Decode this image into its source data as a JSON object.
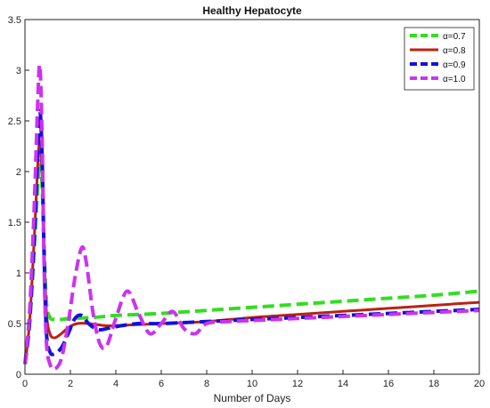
{
  "chart_data": {
    "type": "line",
    "title": "Healthy Hepatocyte",
    "xlabel": "Number of Days",
    "ylabel": "",
    "xlim": [
      0,
      20
    ],
    "ylim": [
      0,
      3.5
    ],
    "xticks": [
      0,
      2,
      4,
      6,
      8,
      10,
      12,
      14,
      16,
      18,
      20
    ],
    "yticks": [
      0,
      0.5,
      1,
      1.5,
      2,
      2.5,
      3,
      3.5
    ],
    "xtick_labels": [
      "0",
      "2",
      "4",
      "6",
      "8",
      "10",
      "12",
      "14",
      "16",
      "18",
      "20"
    ],
    "ytick_labels": [
      "0",
      "0.5",
      "1",
      "1.5",
      "2",
      "2.5",
      "3",
      "3.5"
    ],
    "grid": false,
    "legend_position": "top-right",
    "series": [
      {
        "name": "α=0.7",
        "color": "#33dd22",
        "style": "dashed",
        "x": [
          0,
          0.2,
          0.4,
          0.55,
          0.65,
          0.75,
          0.85,
          0.95,
          1.1,
          1.3,
          1.6,
          2,
          3,
          4,
          6,
          8,
          10,
          12,
          14,
          16,
          18,
          20
        ],
        "y": [
          0.1,
          0.5,
          1.2,
          1.8,
          2.1,
          1.9,
          1.2,
          0.7,
          0.56,
          0.54,
          0.54,
          0.55,
          0.56,
          0.58,
          0.6,
          0.63,
          0.66,
          0.69,
          0.72,
          0.75,
          0.78,
          0.82
        ]
      },
      {
        "name": "α=0.8",
        "color": "#bb2211",
        "style": "solid",
        "x": [
          0,
          0.2,
          0.4,
          0.55,
          0.65,
          0.75,
          0.85,
          0.95,
          1.1,
          1.3,
          1.6,
          1.9,
          2.3,
          2.8,
          3.5,
          4,
          6,
          8,
          10,
          12,
          14,
          16,
          18,
          20
        ],
        "y": [
          0.1,
          0.5,
          1.3,
          2.0,
          2.3,
          2.0,
          1.2,
          0.6,
          0.4,
          0.36,
          0.4,
          0.46,
          0.5,
          0.5,
          0.48,
          0.48,
          0.5,
          0.52,
          0.56,
          0.59,
          0.62,
          0.65,
          0.68,
          0.71
        ]
      },
      {
        "name": "α=0.9",
        "color": "#1111dd",
        "style": "dashed",
        "x": [
          0,
          0.2,
          0.4,
          0.55,
          0.65,
          0.75,
          0.85,
          0.95,
          1.1,
          1.3,
          1.6,
          1.9,
          2.2,
          2.5,
          2.8,
          3.2,
          3.6,
          4,
          5,
          6,
          8,
          10,
          12,
          14,
          16,
          18,
          20
        ],
        "y": [
          0.1,
          0.5,
          1.3,
          2.1,
          2.6,
          2.2,
          1.1,
          0.4,
          0.22,
          0.2,
          0.26,
          0.4,
          0.55,
          0.58,
          0.5,
          0.44,
          0.45,
          0.47,
          0.5,
          0.5,
          0.52,
          0.54,
          0.56,
          0.58,
          0.6,
          0.62,
          0.64
        ]
      },
      {
        "name": "α=1.0",
        "color": "#cc33ee",
        "style": "dashed",
        "x": [
          0,
          0.2,
          0.4,
          0.55,
          0.65,
          0.75,
          0.85,
          0.95,
          1.1,
          1.3,
          1.6,
          1.9,
          2.2,
          2.5,
          2.7,
          3.0,
          3.3,
          3.6,
          4.0,
          4.5,
          5.0,
          5.5,
          6.0,
          6.5,
          7.0,
          7.5,
          8.0,
          9,
          10,
          12,
          14,
          16,
          18,
          20
        ],
        "y": [
          0.1,
          0.6,
          1.6,
          2.6,
          3.05,
          2.4,
          1.0,
          0.3,
          0.1,
          0.05,
          0.15,
          0.5,
          0.95,
          1.25,
          1.1,
          0.6,
          0.3,
          0.28,
          0.55,
          0.82,
          0.6,
          0.4,
          0.5,
          0.62,
          0.45,
          0.4,
          0.5,
          0.52,
          0.53,
          0.55,
          0.57,
          0.59,
          0.61,
          0.63
        ]
      }
    ]
  }
}
